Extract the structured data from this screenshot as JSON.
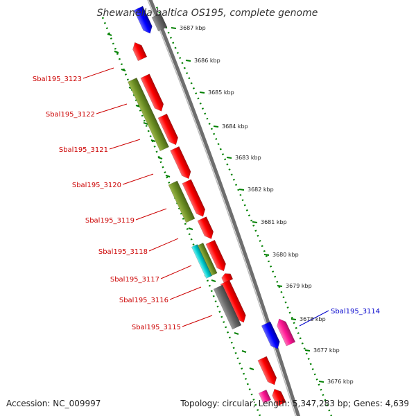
{
  "title": "Shewanella baltica OS195, complete genome",
  "footer": {
    "accession": "Accession: NC_009997",
    "stats": "Topology: circular; Length: 5,347,283 bp; Genes: 4,639"
  },
  "kbp_ticks": [
    "3687 kbp",
    "3686 kbp",
    "3685 kbp",
    "3684 kbp",
    "3683 kbp",
    "3682 kbp",
    "3681 kbp",
    "3680 kbp",
    "3679 kbp",
    "3678 kbp",
    "3677 kbp",
    "3676 kbp"
  ],
  "gene_labels": [
    {
      "name": "Sbal195_3123",
      "color": "#cc0000"
    },
    {
      "name": "Sbal195_3122",
      "color": "#cc0000"
    },
    {
      "name": "Sbal195_3121",
      "color": "#cc0000"
    },
    {
      "name": "Sbal195_3120",
      "color": "#cc0000"
    },
    {
      "name": "Sbal195_3119",
      "color": "#cc0000"
    },
    {
      "name": "Sbal195_3118",
      "color": "#cc0000"
    },
    {
      "name": "Sbal195_3117",
      "color": "#cc0000"
    },
    {
      "name": "Sbal195_3116",
      "color": "#cc0000"
    },
    {
      "name": "Sbal195_3115",
      "color": "#cc0000"
    },
    {
      "name": "Sbal195_3114",
      "color": "#0000cc"
    }
  ],
  "colors": {
    "red": "#ff0000",
    "olive": "#6b8e23",
    "gray": "#666666",
    "blue": "#0000ff",
    "pink": "#ff1493",
    "cyan": "#00ced1",
    "tick_green": "#008000",
    "backbone": "#888888"
  }
}
